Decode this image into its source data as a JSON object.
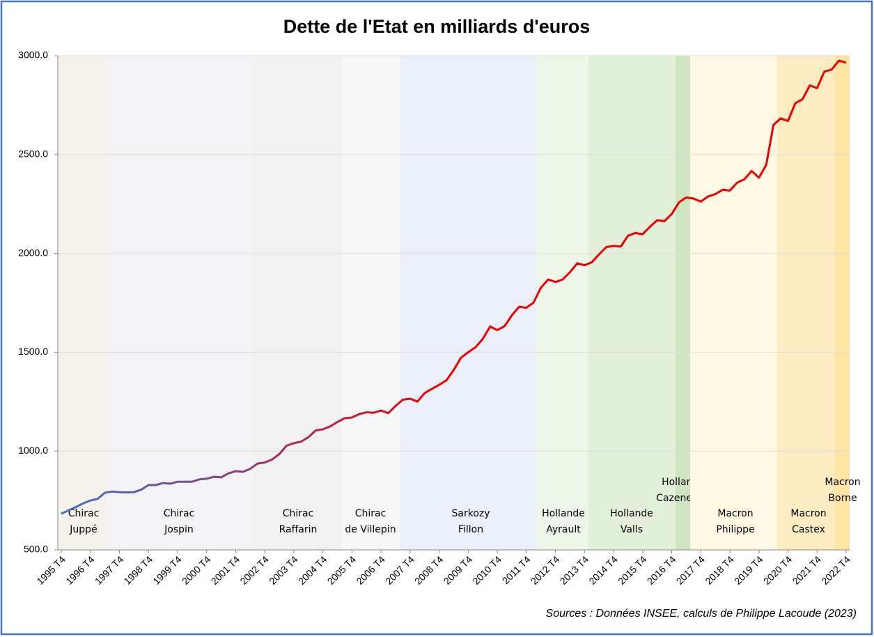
{
  "chart_data": {
    "type": "line",
    "title": "Dette de l'Etat en milliards d'euros",
    "source": "Sources : Données INSEE, calculs de Philippe Lacoude (2023)",
    "categories": [
      "1995 T4",
      null,
      null,
      null,
      "1996 T4",
      null,
      null,
      null,
      "1997 T4",
      null,
      null,
      null,
      "1998 T4",
      null,
      null,
      null,
      "1999 T4",
      null,
      null,
      null,
      "2000 T4",
      null,
      null,
      null,
      "2001 T4",
      null,
      null,
      null,
      "2002 T4",
      null,
      null,
      null,
      "2003 T4",
      null,
      null,
      null,
      "2004 T4",
      null,
      null,
      null,
      "2005 T4",
      null,
      null,
      null,
      "2006 T4",
      null,
      null,
      null,
      "2007 T4",
      null,
      null,
      null,
      "2008 T4",
      null,
      null,
      null,
      "2009 T4",
      null,
      null,
      null,
      "2010 T4",
      null,
      null,
      null,
      "2011 T4",
      null,
      null,
      null,
      "2012 T4",
      null,
      null,
      null,
      "2013 T4",
      null,
      null,
      null,
      "2014 T4",
      null,
      null,
      null,
      "2015 T4",
      null,
      null,
      null,
      "2016 T4",
      null,
      null,
      null,
      "2017 T4",
      null,
      null,
      null,
      "2018 T4",
      null,
      null,
      null,
      "2019 T4",
      null,
      null,
      null,
      "2020 T4",
      null,
      null,
      null,
      "2021 T4",
      null,
      null,
      null,
      "2022 T4"
    ],
    "values": [
      683,
      700,
      717,
      735,
      750,
      758,
      789,
      795,
      792,
      791,
      792,
      805,
      828,
      828,
      838,
      835,
      845,
      845,
      845,
      857,
      860,
      870,
      867,
      887,
      898,
      895,
      910,
      937,
      942,
      957,
      985,
      1027,
      1040,
      1048,
      1070,
      1104,
      1110,
      1125,
      1147,
      1166,
      1170,
      1187,
      1196,
      1194,
      1205,
      1192,
      1228,
      1260,
      1265,
      1250,
      1293,
      1315,
      1335,
      1358,
      1410,
      1472,
      1500,
      1525,
      1567,
      1630,
      1612,
      1632,
      1687,
      1730,
      1725,
      1752,
      1827,
      1868,
      1855,
      1868,
      1905,
      1950,
      1940,
      1955,
      1995,
      2032,
      2038,
      2035,
      2090,
      2103,
      2097,
      2135,
      2168,
      2163,
      2200,
      2258,
      2283,
      2277,
      2262,
      2288,
      2300,
      2322,
      2318,
      2358,
      2375,
      2417,
      2383,
      2447,
      2650,
      2683,
      2670,
      2760,
      2780,
      2850,
      2836,
      2920,
      2930,
      2975,
      2965
    ],
    "color": [
      "#4472c4",
      "#8e3a78",
      "#ee0000"
    ],
    "ylim": [
      500,
      3000
    ],
    "yticks": [
      {
        "value": 500,
        "label": "500.0"
      },
      {
        "value": 1000,
        "label": "1000.0"
      },
      {
        "value": 1500,
        "label": "1500.0"
      },
      {
        "value": 2000,
        "label": "2000.0"
      },
      {
        "value": 2500,
        "label": "2500.0"
      },
      {
        "value": 3000,
        "label": "3000.0"
      }
    ],
    "grid": true,
    "periods": [
      {
        "label": [
          "Chirac",
          "Juppé"
        ],
        "color": "#f4f2ea"
      },
      {
        "label": [
          "Chirac",
          "Jospin"
        ],
        "color": "#f3f3f5"
      },
      {
        "label": [
          "Chirac",
          "Raffarin"
        ],
        "color": "#f1f1f1"
      },
      {
        "label": [
          "Chirac",
          "de Villepin"
        ],
        "color": "#f7f7f7"
      },
      {
        "label": [
          "Sarkozy",
          "Fillon"
        ],
        "color": "#ebeff7"
      },
      {
        "label": [
          "Hollande",
          "Ayrault"
        ],
        "color": "#eef6ea"
      },
      {
        "label": [
          "Hollande",
          "Valls"
        ],
        "color": "#e2efd9"
      },
      {
        "label": [
          "Hollande",
          "Cazeneuve"
        ],
        "color": "#cfe5c1"
      },
      {
        "label": [
          "Macron",
          "Philippe"
        ],
        "color": "#fff8e2"
      },
      {
        "label": [
          "Macron",
          "Castex"
        ],
        "color": "#fdecc2"
      },
      {
        "label": [
          "Macron",
          "Borne"
        ],
        "color": "#ffe5a4"
      }
    ]
  }
}
